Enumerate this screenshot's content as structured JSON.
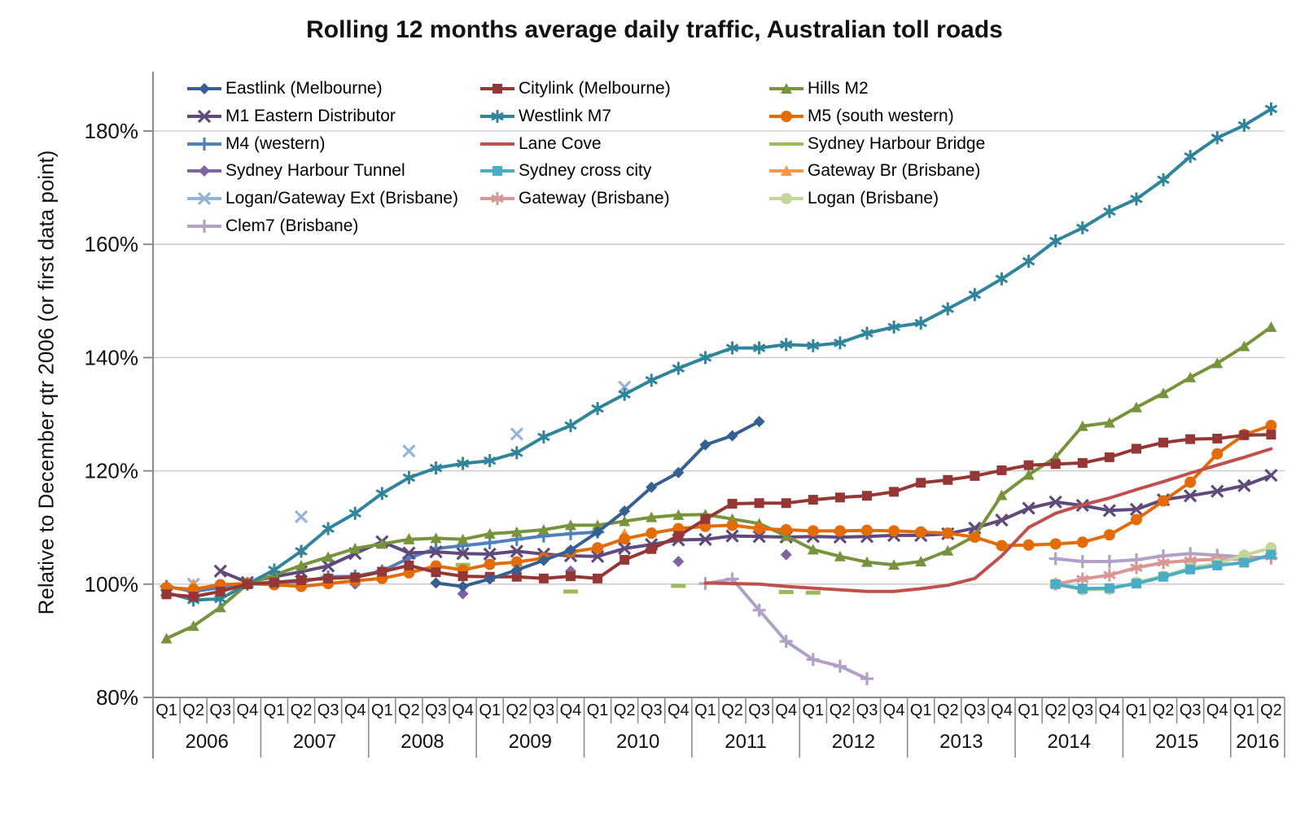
{
  "chart_data": {
    "type": "line",
    "title": "Rolling 12 months average daily traffic, Australian toll roads",
    "ylabel": "Relative to December qtr 2006 (or first data point)",
    "y_axis": {
      "min": 80,
      "max": 190,
      "ticks": [
        80,
        100,
        120,
        140,
        160,
        180
      ],
      "tick_suffix": "%",
      "grid": true
    },
    "x_axis": {
      "years": [
        {
          "label": "2006",
          "quarters": 4
        },
        {
          "label": "2007",
          "quarters": 4
        },
        {
          "label": "2008",
          "quarters": 4
        },
        {
          "label": "2009",
          "quarters": 4
        },
        {
          "label": "2010",
          "quarters": 4
        },
        {
          "label": "2011",
          "quarters": 4
        },
        {
          "label": "2012",
          "quarters": 4
        },
        {
          "label": "2013",
          "quarters": 4
        },
        {
          "label": "2014",
          "quarters": 4
        },
        {
          "label": "2015",
          "quarters": 4
        },
        {
          "label": "2016",
          "quarters": 2
        }
      ]
    },
    "legend": {
      "position": "inside-top-left",
      "columns": 3
    },
    "series": [
      {
        "name": "Eastlink (Melbourne)",
        "color": "#376092",
        "marker": "diamond",
        "line": true,
        "segments": [
          {
            "start": 10,
            "values": [
              100.2,
              99.6,
              100.9,
              102.5,
              104.2,
              106,
              109.2,
              112.9,
              117.1,
              119.7,
              124.6,
              126.2,
              128.7
            ]
          }
        ]
      },
      {
        "name": "Citylink (Melbourne)",
        "color": "#953735",
        "marker": "square",
        "line": true,
        "segments": [
          {
            "start": 0,
            "values": [
              98.2,
              97.8,
              98.7,
              100,
              100.3,
              100.7,
              101,
              101.2,
              102.2,
              103.3,
              102.1,
              101.4,
              101.3,
              101.3,
              101,
              101.4,
              101,
              104.3,
              106.2,
              108.5,
              111.5,
              114.2,
              114.3,
              114.3,
              114.9,
              115.3,
              115.6,
              116.3,
              117.9,
              118.4,
              119.1,
              120.1,
              121,
              121.2,
              121.4,
              122.4,
              123.9,
              125,
              125.6,
              125.7,
              126.3,
              126.4
            ]
          }
        ]
      },
      {
        "name": "Hills M2",
        "color": "#77933C",
        "marker": "triangle",
        "line": true,
        "segments": [
          {
            "start": 0,
            "values": [
              90.4,
              92.6,
              95.9,
              100,
              101.6,
              103.3,
              104.8,
              106.3,
              107.1,
              107.9,
              108.1,
              107.9,
              108.9,
              109.2,
              109.6,
              110.4,
              110.4,
              111.1,
              111.8,
              112.2,
              112.3,
              111.5,
              110.7,
              108.5,
              106.1,
              104.9,
              103.9,
              103.4,
              104,
              105.9,
              108.5,
              115.7,
              119.3,
              122.4,
              127.9,
              128.5,
              131.2,
              133.7,
              136.5,
              139,
              142,
              145.4
            ]
          }
        ]
      },
      {
        "name": "M1 Eastern Distributor",
        "color": "#604A7B",
        "marker": "x",
        "line": true,
        "segments": [
          {
            "start": 2,
            "values": [
              102.3,
              100.3,
              101.3,
              102.2,
              103.2,
              105.4,
              107.5,
              105.5,
              105.7,
              105.4,
              105.3,
              105.8,
              105.3,
              105,
              104.9,
              106.3,
              107,
              107.8,
              107.9,
              108.5,
              108.4,
              108.3,
              108.4,
              108.3,
              108.4,
              108.6,
              108.6,
              108.9,
              109.9,
              111.3,
              113.4,
              114.5,
              113.9,
              113,
              113.2,
              114.9,
              115.6,
              116.4,
              117.4,
              119.2
            ]
          }
        ]
      },
      {
        "name": "Westlink M7",
        "color": "#31859B",
        "marker": "star",
        "line": true,
        "segments": [
          {
            "start": 0,
            "values": [
              98.5,
              97.2,
              97.4,
              100,
              102.5,
              105.8,
              109.8,
              112.5,
              116,
              118.8,
              120.5,
              121.3,
              121.8,
              123.2,
              126,
              128,
              131,
              133.5,
              136,
              138.1,
              140,
              141.7,
              141.7,
              142.3,
              142.1,
              142.6,
              144.3,
              145.4,
              146.1,
              148.6,
              151.1,
              153.9,
              157,
              160.6,
              162.9,
              165.8,
              168,
              171.4,
              175.5,
              178.8,
              181,
              183.9
            ]
          }
        ]
      },
      {
        "name": "M5 (south western)",
        "color": "#E36C09",
        "marker": "circle",
        "line": true,
        "segments": [
          {
            "start": 0,
            "values": [
              99.4,
              99.1,
              99.9,
              100.1,
              99.9,
              99.6,
              100.1,
              100.6,
              101,
              102,
              103.2,
              102.5,
              103.5,
              103.9,
              104.6,
              105.7,
              106.4,
              108,
              109,
              109.8,
              110.2,
              110.4,
              109.8,
              109.6,
              109.4,
              109.4,
              109.5,
              109.4,
              109.2,
              109,
              108.3,
              106.8,
              106.9,
              107.1,
              107.4,
              108.7,
              111.4,
              114.7,
              118,
              123,
              126.4,
              128
            ]
          }
        ]
      },
      {
        "name": "M4 (western)",
        "color": "#4F81BD",
        "marker": "plus",
        "line": true,
        "segments": [
          {
            "start": 0,
            "values": [
              99.6,
              98.7,
              99.4,
              100.1,
              100.3,
              100.4,
              101.3,
              101.4,
              102.3,
              104.6,
              106.3,
              106.8,
              107.3,
              107.9,
              108.5,
              108.9,
              109.2
            ]
          }
        ]
      },
      {
        "name": "Lane Cove",
        "color": "#C0504D",
        "marker": "none",
        "line": true,
        "segments": [
          {
            "start": 20,
            "values": [
              100.2,
              100.1,
              100,
              99.6,
              99.3,
              99,
              98.7,
              98.7,
              99.2,
              99.8,
              101,
              105,
              110,
              112.5,
              114,
              115.2,
              116.7,
              118.1,
              119.6,
              121,
              122.4,
              123.9
            ]
          }
        ]
      },
      {
        "name": "Sydney Harbour Bridge",
        "color": "#9BBB59",
        "marker": "none",
        "line": true,
        "segments": [
          {
            "start": 11,
            "values": [
              103.4
            ]
          },
          {
            "start": 15,
            "values": [
              98.7
            ]
          },
          {
            "start": 19,
            "values": [
              99.7
            ]
          },
          {
            "start": 23,
            "values": [
              98.6
            ]
          },
          {
            "start": 24,
            "values": [
              98.5
            ]
          }
        ]
      },
      {
        "name": "Sydney Harbour Tunnel",
        "color": "#8064A2",
        "marker": "diamond",
        "line": false,
        "segments": [
          {
            "start": 7,
            "values": [
              100
            ]
          },
          {
            "start": 11,
            "values": [
              98.3
            ]
          },
          {
            "start": 15,
            "values": [
              102.3
            ]
          },
          {
            "start": 19,
            "values": [
              104
            ]
          },
          {
            "start": 23,
            "values": [
              105.2
            ]
          }
        ]
      },
      {
        "name": "Sydney cross city",
        "color": "#4BACC6",
        "marker": "square",
        "line": true,
        "segments": [
          {
            "start": 33,
            "values": [
              100,
              99.2,
              99.3,
              100.1,
              101.3,
              102.6,
              103.3,
              103.8,
              105.2
            ]
          }
        ]
      },
      {
        "name": "Gateway Br (Brisbane)",
        "color": "#F79646",
        "marker": "triangle",
        "line": false,
        "segments": [
          {
            "start": 1,
            "values": [
              100
            ]
          },
          {
            "start": 5,
            "values": [
              106
            ]
          },
          {
            "start": 9,
            "values": [
              108.1
            ]
          },
          {
            "start": 13,
            "values": [
              104
            ]
          },
          {
            "start": 17,
            "values": [
              108.9
            ]
          }
        ]
      },
      {
        "name": "Logan/Gateway Ext (Brisbane)",
        "color": "#95B3D7",
        "marker": "x",
        "line": false,
        "segments": [
          {
            "start": 1,
            "values": [
              100
            ]
          },
          {
            "start": 5,
            "values": [
              111.9
            ]
          },
          {
            "start": 9,
            "values": [
              123.5
            ]
          },
          {
            "start": 13,
            "values": [
              126.5
            ]
          },
          {
            "start": 17,
            "values": [
              134.8
            ]
          }
        ]
      },
      {
        "name": "Gateway (Brisbane)",
        "color": "#D99694",
        "marker": "star",
        "line": true,
        "segments": [
          {
            "start": 33,
            "values": [
              100,
              100.9,
              101.6,
              102.9,
              103.8,
              104.2,
              104.4,
              104.4,
              104.9
            ]
          }
        ]
      },
      {
        "name": "Logan (Brisbane)",
        "color": "#C3D69B",
        "marker": "circle",
        "line": true,
        "segments": [
          {
            "start": 33,
            "values": [
              100,
              99,
              99.1,
              100.3,
              101.4,
              102.9,
              103.6,
              105.1,
              106.4
            ]
          }
        ]
      },
      {
        "name": "Clem7 (Brisbane)",
        "color": "#B2A1C7",
        "marker": "plus",
        "line": true,
        "segments": [
          {
            "start": 20,
            "values": [
              100.1,
              100.9,
              95.4,
              89.9,
              86.7,
              85.5,
              83.3
            ]
          },
          {
            "start": 33,
            "values": [
              104.5,
              104,
              104,
              104.3,
              105,
              105.4,
              105.1,
              104.8,
              104.6
            ]
          }
        ]
      }
    ]
  }
}
